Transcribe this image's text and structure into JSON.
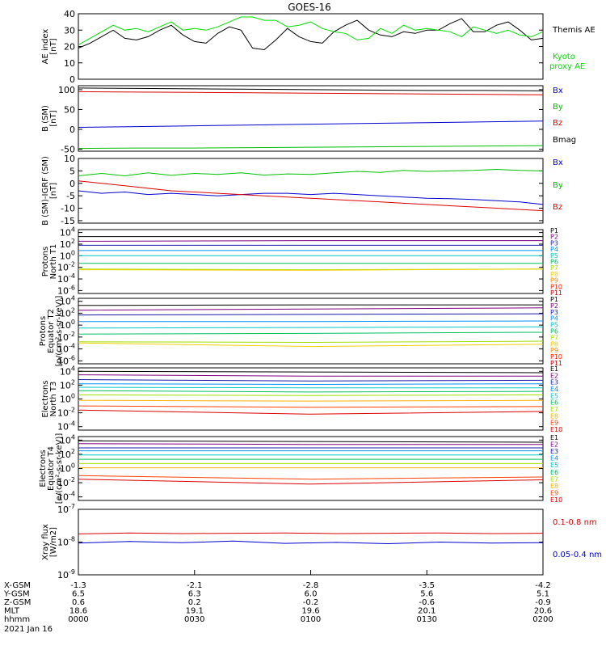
{
  "title": "GOES-16",
  "chart_data": [
    {
      "type": "line",
      "ylabel": [
        "AE index",
        "[nT]"
      ],
      "ylim": [
        0,
        40
      ],
      "yticks": [
        "0",
        "10",
        "20",
        "30",
        "40"
      ],
      "series": [
        {
          "name": "Themis AE",
          "color": "#000000",
          "values": [
            19,
            22,
            26,
            30,
            25,
            24,
            26,
            30,
            33,
            27,
            23,
            22,
            28,
            32,
            30,
            19,
            18,
            24,
            31,
            26,
            23,
            22,
            29,
            33,
            36,
            30,
            27,
            26,
            29,
            28,
            30,
            30,
            34,
            37,
            29,
            29,
            33,
            35,
            30,
            24,
            25
          ]
        },
        {
          "name": "Kyoto\nproxy AE",
          "color": "#00e000",
          "values": [
            21,
            25,
            29,
            33,
            30,
            31,
            29,
            32,
            35,
            30,
            31,
            30,
            32,
            35,
            38,
            38,
            36,
            36,
            32,
            33,
            35,
            31,
            29,
            28,
            24,
            25,
            31,
            28,
            33,
            30,
            31,
            30,
            29,
            26,
            32,
            30,
            28,
            30,
            27,
            26,
            29
          ]
        }
      ]
    },
    {
      "type": "line",
      "ylabel": [
        "B (SM)",
        "[nT]"
      ],
      "ylim": [
        -55,
        110
      ],
      "yticks": [
        "-50",
        "0",
        "50",
        "100"
      ],
      "series": [
        {
          "name": "Bx",
          "color": "#0000d0",
          "values": [
            5,
            7,
            9,
            11,
            13,
            15,
            17,
            19,
            21
          ]
        },
        {
          "name": "By",
          "color": "#00c000",
          "values": [
            -48,
            -47,
            -47,
            -46,
            -45,
            -44,
            -43,
            -42,
            -41
          ]
        },
        {
          "name": "Bz",
          "color": "#dd0000",
          "values": [
            95,
            94,
            93,
            92,
            91,
            90,
            89,
            88,
            87
          ]
        },
        {
          "name": "Bmag",
          "color": "#000000",
          "values": [
            104,
            103,
            102,
            101,
            100,
            99,
            98,
            98,
            97
          ]
        }
      ]
    },
    {
      "type": "line",
      "ylabel": [
        "B (SM)-IGRF (SM)",
        "[nT]"
      ],
      "ylim": [
        -16,
        10
      ],
      "yticks": [
        "-15",
        "-10",
        "-5",
        "0",
        "5",
        "10"
      ],
      "series": [
        {
          "name": "Bx",
          "color": "#0000d0",
          "values": [
            -3,
            -4,
            -3.5,
            -4.5,
            -4,
            -4.5,
            -5,
            -4.5,
            -4,
            -4,
            -4.5,
            -4,
            -4.5,
            -5,
            -5.5,
            -6,
            -6.2,
            -6.5,
            -7,
            -7.5,
            -8.5
          ]
        },
        {
          "name": "By",
          "color": "#00c000",
          "values": [
            3,
            4,
            3,
            4.2,
            3.2,
            4,
            3.6,
            4.2,
            3.3,
            3.8,
            3.6,
            4.2,
            4.8,
            4.4,
            5.2,
            4.8,
            5,
            5.2,
            5.6,
            5.2,
            5
          ]
        },
        {
          "name": "Bz",
          "color": "#dd0000",
          "values": [
            1,
            0,
            -1,
            -2,
            -3,
            -3.5,
            -4,
            -4.5,
            -5,
            -5.5,
            -6,
            -6.5,
            -7,
            -7.5,
            -8,
            -8.5,
            -9,
            -9.5,
            -10,
            -10.5,
            -11
          ]
        }
      ]
    },
    {
      "type": "line",
      "log": true,
      "ylabel": [
        "Protons",
        "North T1"
      ],
      "ylim": [
        -6.5,
        4.5
      ],
      "yticks": [
        {
          "b": "10",
          "e": "4",
          "v": 4
        },
        {
          "b": "10",
          "e": "2",
          "v": 2
        },
        {
          "b": "10",
          "e": "0",
          "v": 0
        },
        {
          "b": "10",
          "e": "-2",
          "v": -2
        },
        {
          "b": "10",
          "e": "-4",
          "v": -4
        },
        {
          "b": "10",
          "e": "-6",
          "v": -6
        }
      ],
      "series": [
        {
          "name": "P1",
          "color": "#000000",
          "values": [
            3.3,
            3.3,
            3.3
          ]
        },
        {
          "name": "P2",
          "color": "#800080",
          "values": [
            2.5,
            2.6,
            2.6
          ]
        },
        {
          "name": "P3",
          "color": "#1818b0",
          "values": [
            1.8,
            1.8,
            1.8
          ]
        },
        {
          "name": "P4",
          "color": "#0090ff",
          "values": [
            0.9,
            0.9,
            0.9
          ]
        },
        {
          "name": "P5",
          "color": "#00c8c8",
          "values": [
            0.0,
            0.0,
            0.0
          ]
        },
        {
          "name": "P6",
          "color": "#00c060",
          "values": [
            -1.3,
            -1.3,
            -1.3
          ]
        },
        {
          "name": "P7",
          "color": "#a0e000",
          "values": [
            -2.3,
            -2.4,
            -2.3
          ]
        },
        {
          "name": "P8",
          "color": "#f0d000",
          "values": [
            -2.4,
            -2.5,
            -2.3
          ]
        },
        {
          "name": "P9",
          "color": "#ff8800",
          "values": []
        },
        {
          "name": "P10",
          "color": "#ff2000",
          "values": []
        },
        {
          "name": "P11",
          "color": "#c00000",
          "values": []
        }
      ]
    },
    {
      "type": "line",
      "log": true,
      "ylabel": [
        "Protons",
        "Equator T2",
        "[p/(cm²-s-sr-keV)]"
      ],
      "ylim": [
        -6.5,
        4.5
      ],
      "yticks": [
        {
          "b": "10",
          "e": "4",
          "v": 4
        },
        {
          "b": "10",
          "e": "2",
          "v": 2
        },
        {
          "b": "10",
          "e": "0",
          "v": 0
        },
        {
          "b": "10",
          "e": "-2",
          "v": -2
        },
        {
          "b": "10",
          "e": "-4",
          "v": -4
        },
        {
          "b": "10",
          "e": "-6",
          "v": -6
        }
      ],
      "series": [
        {
          "name": "P1",
          "color": "#000000",
          "values": [
            3.3,
            3.4,
            3.4
          ]
        },
        {
          "name": "P2",
          "color": "#800080",
          "values": [
            2.5,
            2.7,
            2.9
          ]
        },
        {
          "name": "P3",
          "color": "#1818b0",
          "values": [
            1.7,
            1.8,
            1.9
          ]
        },
        {
          "name": "P4",
          "color": "#0090ff",
          "values": [
            0.6,
            0.6,
            0.7
          ]
        },
        {
          "name": "P5",
          "color": "#00c8c8",
          "values": [
            -0.5,
            -0.4,
            -0.3
          ]
        },
        {
          "name": "P6",
          "color": "#00c060",
          "values": [
            -1.5,
            -1.4,
            -1.2
          ]
        },
        {
          "name": "P7",
          "color": "#a0e000",
          "values": [
            -2.8,
            -2.9,
            -2.7
          ]
        },
        {
          "name": "P8",
          "color": "#f0d000",
          "values": [
            -3.0,
            -3.6,
            -3.2
          ]
        },
        {
          "name": "P9",
          "color": "#ff8800",
          "values": []
        },
        {
          "name": "P10",
          "color": "#ff2000",
          "values": []
        },
        {
          "name": "P11",
          "color": "#c00000",
          "values": []
        }
      ]
    },
    {
      "type": "line",
      "log": true,
      "ylabel": [
        "Electrons",
        "North T3"
      ],
      "ylim": [
        -4.5,
        4.5
      ],
      "yticks": [
        {
          "b": "10",
          "e": "4",
          "v": 4
        },
        {
          "b": "10",
          "e": "2",
          "v": 2
        },
        {
          "b": "10",
          "e": "0",
          "v": 0
        },
        {
          "b": "10",
          "e": "-2",
          "v": -2
        },
        {
          "b": "10",
          "e": "-4",
          "v": -4
        }
      ],
      "series": [
        {
          "name": "E1",
          "color": "#000000",
          "values": [
            4.0,
            3.9,
            3.8
          ]
        },
        {
          "name": "E2",
          "color": "#800080",
          "values": [
            3.5,
            3.3,
            3.3
          ]
        },
        {
          "name": "E3",
          "color": "#1818b0",
          "values": [
            2.8,
            2.6,
            2.7
          ]
        },
        {
          "name": "E4",
          "color": "#0090ff",
          "values": [
            2.2,
            2.1,
            2.2
          ]
        },
        {
          "name": "E5",
          "color": "#00c8c8",
          "values": [
            1.7,
            1.6,
            1.6
          ]
        },
        {
          "name": "E6",
          "color": "#00c060",
          "values": [
            1.2,
            1.0,
            1.1
          ]
        },
        {
          "name": "E7",
          "color": "#a0e000",
          "values": [
            0.6,
            0.5,
            0.6
          ]
        },
        {
          "name": "E8",
          "color": "#ffb000",
          "values": [
            -0.2,
            -0.3,
            -0.2
          ]
        },
        {
          "name": "E9",
          "color": "#ff4000",
          "values": [
            -1.0,
            -1.2,
            -1.1
          ]
        },
        {
          "name": "E10",
          "color": "#dd0000",
          "values": [
            -1.6,
            -2.2,
            -1.8
          ]
        }
      ]
    },
    {
      "type": "line",
      "log": true,
      "ylabel": [
        "Electrons",
        "Equator T4",
        "[e/(cm²-s-sr-keV)]"
      ],
      "ylim": [
        -4.5,
        4.5
      ],
      "yticks": [
        {
          "b": "10",
          "e": "4",
          "v": 4
        },
        {
          "b": "10",
          "e": "2",
          "v": 2
        },
        {
          "b": "10",
          "e": "0",
          "v": 0
        },
        {
          "b": "10",
          "e": "-2",
          "v": -2
        },
        {
          "b": "10",
          "e": "-4",
          "v": -4
        }
      ],
      "series": [
        {
          "name": "E1",
          "color": "#000000",
          "values": [
            3.9,
            3.8,
            3.7
          ]
        },
        {
          "name": "E2",
          "color": "#800080",
          "values": [
            3.5,
            3.4,
            3.4
          ]
        },
        {
          "name": "E3",
          "color": "#1818b0",
          "values": [
            2.9,
            2.9,
            2.9
          ]
        },
        {
          "name": "E4",
          "color": "#0090ff",
          "values": [
            2.5,
            2.5,
            2.5
          ]
        },
        {
          "name": "E5",
          "color": "#00c8c8",
          "values": [
            1.9,
            1.9,
            1.9
          ]
        },
        {
          "name": "E6",
          "color": "#00c060",
          "values": [
            1.3,
            1.3,
            1.3
          ]
        },
        {
          "name": "E7",
          "color": "#a0e000",
          "values": [
            0.7,
            0.7,
            0.7
          ]
        },
        {
          "name": "E8",
          "color": "#ffb000",
          "values": [
            0.1,
            0.1,
            0.1
          ]
        },
        {
          "name": "E9",
          "color": "#ff4000",
          "values": [
            -1.0,
            -1.5,
            -1.2
          ]
        },
        {
          "name": "E10",
          "color": "#dd0000",
          "values": [
            -1.5,
            -2.2,
            -1.6
          ]
        }
      ]
    },
    {
      "type": "line",
      "log": true,
      "ylabel": [
        "Xray flux",
        "[W/m2]"
      ],
      "ylim": [
        -9,
        -7
      ],
      "yticks": [
        {
          "b": "10",
          "e": "-7",
          "v": -7
        },
        {
          "b": "10",
          "e": "-8",
          "v": -8
        },
        {
          "b": "10",
          "e": "-9",
          "v": -9
        }
      ],
      "series": [
        {
          "name": "0.1-0.8 nm",
          "color": "#dd0000",
          "values": [
            -7.75,
            -7.72,
            -7.74,
            -7.73,
            -7.72,
            -7.74,
            -7.73,
            -7.72,
            -7.74,
            -7.73
          ]
        },
        {
          "name": "0.05-0.4 nm",
          "color": "#0000d0",
          "values": [
            -8.03,
            -7.98,
            -8.02,
            -7.97,
            -8.04,
            -8.01,
            -8.05,
            -8.0,
            -8.03,
            -8.02
          ]
        }
      ]
    }
  ],
  "x_axis": {
    "rows": [
      {
        "label": "X-GSM",
        "values": [
          "-1.3",
          "-2.1",
          "-2.8",
          "-3.5",
          "-4.2"
        ]
      },
      {
        "label": "Y-GSM",
        "values": [
          "6.5",
          "6.3",
          "6.0",
          "5.6",
          "5.1"
        ]
      },
      {
        "label": "Z-GSM",
        "values": [
          "0.6",
          "0.2",
          "-0.2",
          "-0.6",
          "-0.9"
        ]
      },
      {
        "label": "MLT",
        "values": [
          "18.6",
          "19.1",
          "19.6",
          "20.1",
          "20.6"
        ]
      },
      {
        "label": "hhmm",
        "values": [
          "0000",
          "0030",
          "0100",
          "0130",
          "0200"
        ]
      }
    ],
    "date": "2021 Jan 16"
  }
}
